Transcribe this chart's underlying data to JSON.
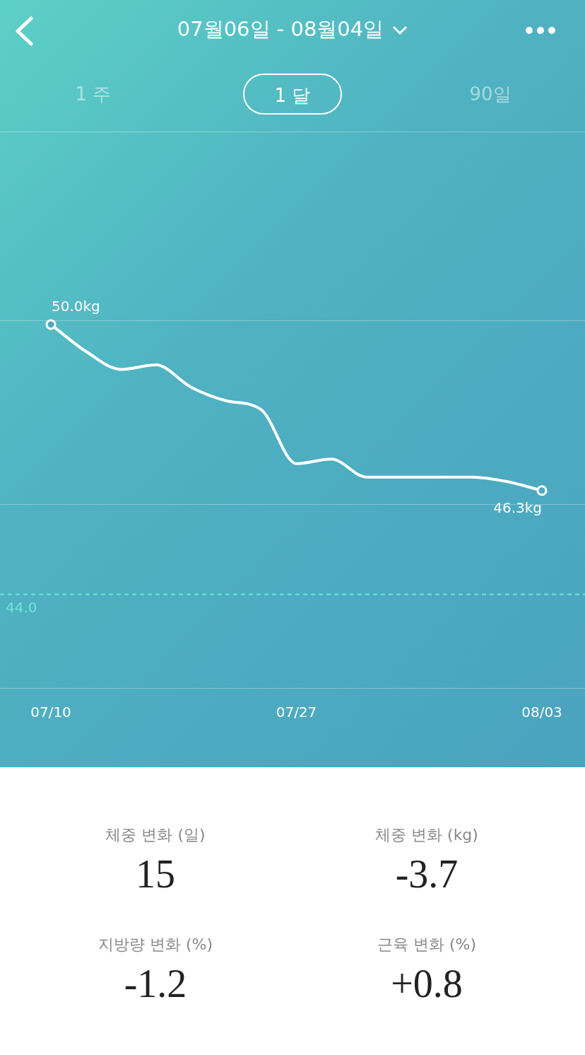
{
  "chart_data": {
    "type": "line",
    "title": "07월06일 - 08월04일",
    "categories": [
      "07/10",
      null,
      null,
      null,
      null,
      null,
      null,
      "07/27",
      null,
      null,
      null,
      null,
      null,
      null,
      "08/03"
    ],
    "series": [
      {
        "color": "#ffffff",
        "values": [
          50.0,
          49.4,
          49.0,
          49.1,
          48.6,
          48.3,
          48.1,
          46.9,
          47.0,
          46.6,
          46.6,
          46.6,
          46.6,
          46.5,
          46.3
        ],
        "value_labels": [
          "50.0kg",
          null,
          null,
          null,
          null,
          null,
          null,
          null,
          null,
          null,
          null,
          null,
          null,
          null,
          "46.3kg"
        ]
      }
    ],
    "ylim": [
      41.9,
      54.3
    ],
    "yticks": [
      {
        "value": 41.9,
        "label": null
      },
      {
        "value": 46.0,
        "label": null
      },
      {
        "value": 50.1,
        "label": null
      },
      {
        "value": 54.3,
        "label": null
      }
    ],
    "grid": "y",
    "tick_labels": "x",
    "legend": false,
    "line_style": "solid",
    "ref_lines": [
      {
        "axis": "y",
        "value": 44.0,
        "label": "44.0",
        "color": "#6fe6d8",
        "line_style": "dashed"
      }
    ],
    "annotations": [
      "1 주",
      "1 달",
      "90일",
      "체중 변화 (일)",
      "15",
      "체중 변화 (kg)",
      "-3.7",
      "지방량 변화 (%)",
      "-1.2",
      "근육 변화 (%)",
      "+0.8"
    ]
  }
}
